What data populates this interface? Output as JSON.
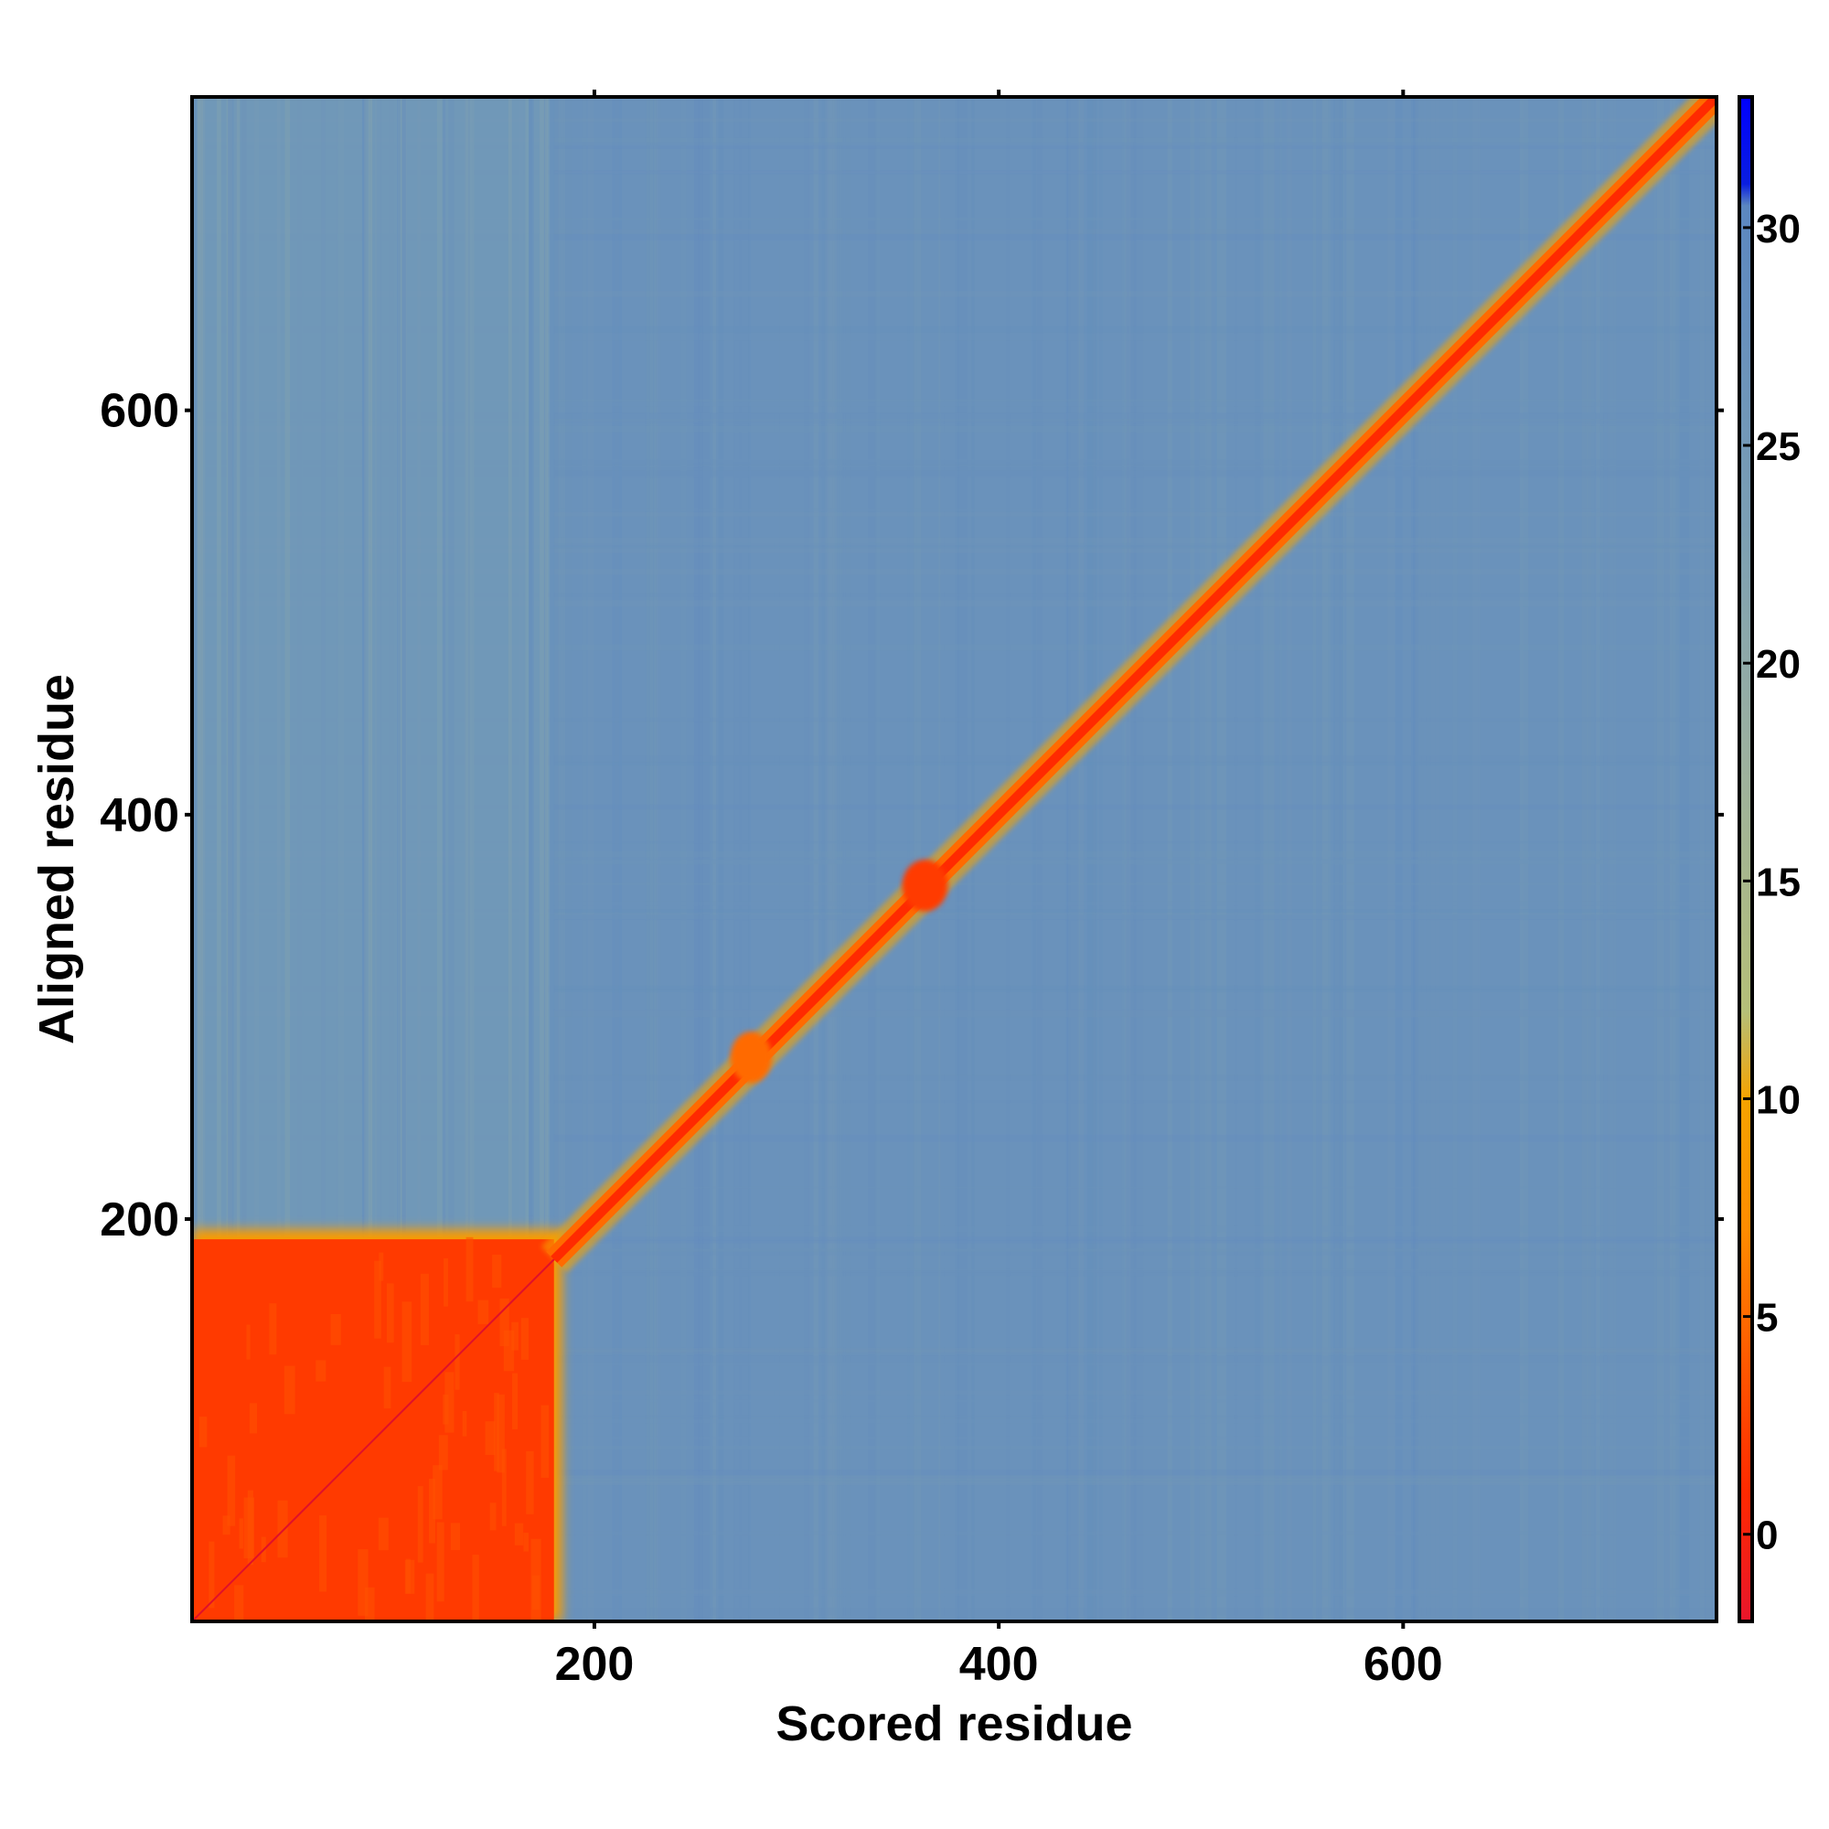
{
  "chart_data": {
    "type": "heatmap",
    "title": "",
    "xlabel": "Scored residue",
    "ylabel": "Aligned residue",
    "xlim": [
      1,
      755
    ],
    "ylim": [
      1,
      755
    ],
    "x_ticks": [
      200,
      400,
      600
    ],
    "y_ticks": [
      200,
      400,
      600
    ],
    "x_tick_labels": [
      "200",
      "400",
      "600"
    ],
    "y_tick_labels": [
      "200",
      "400",
      "600"
    ],
    "colorbar": {
      "range": [
        -2,
        33
      ],
      "ticks": [
        0,
        5,
        10,
        15,
        20,
        25,
        30
      ],
      "tick_labels": [
        "0",
        "5",
        "10",
        "15",
        "20",
        "25",
        "30"
      ],
      "stops": [
        {
          "value": -2,
          "color": "#e8162b"
        },
        {
          "value": 1,
          "color": "#ff2a00"
        },
        {
          "value": 4,
          "color": "#ff5a00"
        },
        {
          "value": 7,
          "color": "#ff8c00"
        },
        {
          "value": 10,
          "color": "#f6a300"
        },
        {
          "value": 12,
          "color": "#b5bf78"
        },
        {
          "value": 18,
          "color": "#9bb0a0"
        },
        {
          "value": 23,
          "color": "#7c9fb3"
        },
        {
          "value": 28,
          "color": "#668fbd"
        },
        {
          "value": 30.5,
          "color": "#5b87c0"
        },
        {
          "value": 31,
          "color": "#0a1ee0"
        },
        {
          "value": 33,
          "color": "#0000ff"
        }
      ]
    },
    "regions": [
      {
        "description": "high-confidence block",
        "x_range": [
          1,
          180
        ],
        "y_range": [
          1,
          190
        ],
        "value": 2
      },
      {
        "description": "diagonal",
        "x_range": [
          180,
          755
        ],
        "y_range": [
          180,
          755
        ],
        "value": 1
      },
      {
        "description": "local blob",
        "x_range": [
          355,
          372
        ],
        "y_range": [
          355,
          375
        ],
        "value": 2
      },
      {
        "description": "local blob",
        "x_range": [
          270,
          285
        ],
        "y_range": [
          270,
          290
        ],
        "value": 5
      },
      {
        "description": "N-terminal column band",
        "x_range": [
          1,
          180
        ],
        "y_range": [
          190,
          755
        ],
        "value": 25
      },
      {
        "description": "background",
        "x_range": [
          180,
          755
        ],
        "y_range": [
          1,
          755
        ],
        "value": 27
      }
    ],
    "grid": false,
    "legend": "colorbar-right"
  }
}
